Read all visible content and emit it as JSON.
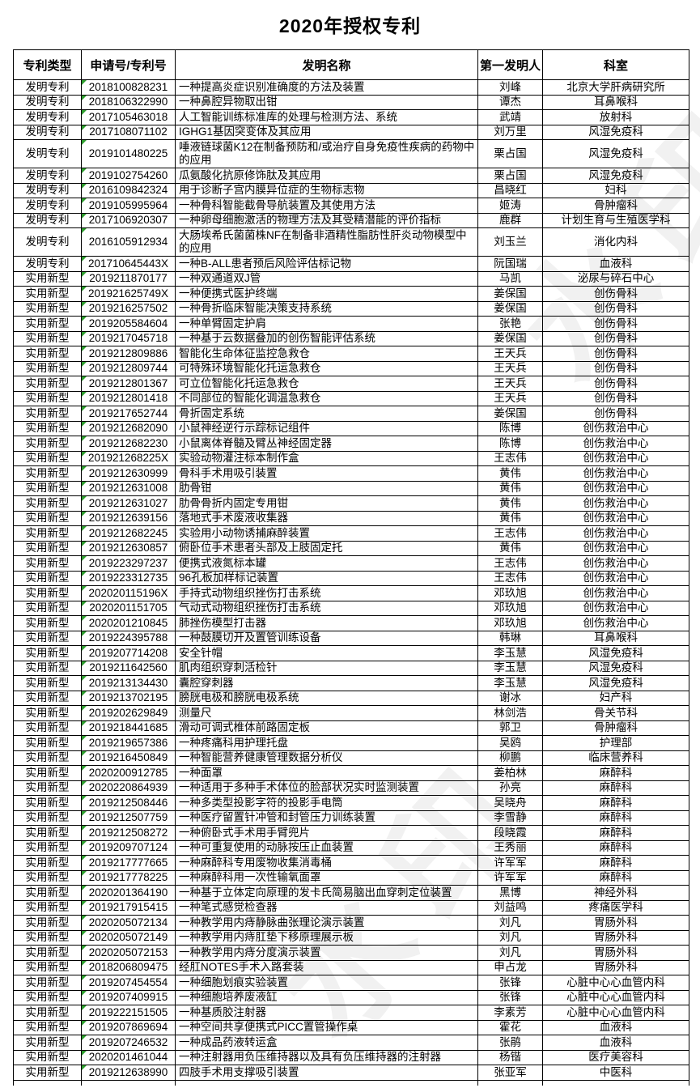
{
  "title": "2020年授权专利",
  "watermark": {
    "text": "水印"
  },
  "table": {
    "columns": [
      "专利类型",
      "申请号/专利号",
      "发明名称",
      "第一发明人",
      "科室"
    ],
    "rows": [
      {
        "type": "发明专利",
        "no": "2018100828231",
        "name": "一种提高炎症识别准确度的方法及装置",
        "inventor": "刘峰",
        "dept": "北京大学肝病研究所"
      },
      {
        "type": "发明专利",
        "no": "2018106322990",
        "name": "一种鼻腔异物取出钳",
        "inventor": "谭杰",
        "dept": "耳鼻喉科"
      },
      {
        "type": "发明专利",
        "no": "2017105463018",
        "name": "人工智能训练标准库的处理与检测方法、系统",
        "inventor": "武靖",
        "dept": "放射科"
      },
      {
        "type": "发明专利",
        "no": "2017108071102",
        "name": "IGHG1基因突变体及其应用",
        "inventor": "刘万里",
        "dept": "风湿免疫科"
      },
      {
        "type": "发明专利",
        "no": "2019101480225",
        "name": "唾液链球菌K12在制备预防和/或治疗自身免疫性疾病的药物中的应用",
        "inventor": "栗占国",
        "dept": "风湿免疫科"
      },
      {
        "type": "发明专利",
        "no": "2019102754260",
        "name": "瓜氨酸化抗原修饰肽及其应用",
        "inventor": "栗占国",
        "dept": "风湿免疫科"
      },
      {
        "type": "发明专利",
        "no": "2016109842324",
        "name": "用于诊断子宫内膜异位症的生物标志物",
        "inventor": "昌晓红",
        "dept": "妇科"
      },
      {
        "type": "发明专利",
        "no": "2019105995964",
        "name": "一种骨科智能截骨导航装置及其使用方法",
        "inventor": "姬涛",
        "dept": "骨肿瘤科"
      },
      {
        "type": "发明专利",
        "no": "2017106920307",
        "name": "一种卵母细胞激活的物理方法及其受精潜能的评价指标",
        "inventor": "鹿群",
        "dept": "计划生育与生殖医学科"
      },
      {
        "type": "发明专利",
        "no": "2016105912934",
        "name": "大肠埃希氏菌菌株NF在制备非酒精性脂肪性肝炎动物模型中的应用",
        "inventor": "刘玉兰",
        "dept": "消化内科"
      },
      {
        "type": "发明专利",
        "no": "201710645443X",
        "name": "一种B-ALL患者预后风险评估标记物",
        "inventor": "阮国瑞",
        "dept": "血液科"
      },
      {
        "type": "实用新型",
        "no": "2019211870177",
        "name": "一种双通道双J管",
        "inventor": "马凯",
        "dept": "泌尿与碎石中心"
      },
      {
        "type": "实用新型",
        "no": "201921625749X",
        "name": "一种便携式医护终端",
        "inventor": "姜保国",
        "dept": "创伤骨科"
      },
      {
        "type": "实用新型",
        "no": "2019216257502",
        "name": "一种骨折临床智能决策支持系统",
        "inventor": "姜保国",
        "dept": "创伤骨科"
      },
      {
        "type": "实用新型",
        "no": "2019205584604",
        "name": "一种单臂固定护肩",
        "inventor": "张艳",
        "dept": "创伤骨科"
      },
      {
        "type": "实用新型",
        "no": "2019217045718",
        "name": "一种基于云数据叠加的创伤智能评估系统",
        "inventor": "姜保国",
        "dept": "创伤骨科"
      },
      {
        "type": "实用新型",
        "no": "2019212809886",
        "name": "智能化生命体征监控急救仓",
        "inventor": "王天兵",
        "dept": "创伤骨科"
      },
      {
        "type": "实用新型",
        "no": "2019212809744",
        "name": "可特殊环境智能化托运急救仓",
        "inventor": "王天兵",
        "dept": "创伤骨科"
      },
      {
        "type": "实用新型",
        "no": "2019212801367",
        "name": "可立位智能化托运急救仓",
        "inventor": "王天兵",
        "dept": "创伤骨科"
      },
      {
        "type": "实用新型",
        "no": "2019212801418",
        "name": "不同部位的智能化调温急救仓",
        "inventor": "王天兵",
        "dept": "创伤骨科"
      },
      {
        "type": "实用新型",
        "no": "2019217652744",
        "name": "骨折固定系统",
        "inventor": "姜保国",
        "dept": "创伤骨科"
      },
      {
        "type": "实用新型",
        "no": "2019212682090",
        "name": "小鼠神经逆行示踪标记组件",
        "inventor": "陈博",
        "dept": "创伤救治中心"
      },
      {
        "type": "实用新型",
        "no": "2019212682230",
        "name": "小鼠离体脊髓及臂丛神经固定器",
        "inventor": "陈博",
        "dept": "创伤救治中心"
      },
      {
        "type": "实用新型",
        "no": "201921268225X",
        "name": "实验动物灌注标本制作盒",
        "inventor": "王志伟",
        "dept": "创伤救治中心"
      },
      {
        "type": "实用新型",
        "no": "2019212630999",
        "name": "骨科手术用吸引装置",
        "inventor": "黄伟",
        "dept": "创伤救治中心"
      },
      {
        "type": "实用新型",
        "no": "2019212631008",
        "name": "肋骨钳",
        "inventor": "黄伟",
        "dept": "创伤救治中心"
      },
      {
        "type": "实用新型",
        "no": "2019212631027",
        "name": "肋骨骨折内固定专用钳",
        "inventor": "黄伟",
        "dept": "创伤救治中心"
      },
      {
        "type": "实用新型",
        "no": "2019212639156",
        "name": "落地式手术废液收集器",
        "inventor": "黄伟",
        "dept": "创伤救治中心"
      },
      {
        "type": "实用新型",
        "no": "2019212682245",
        "name": "实验用小动物诱捕麻醉装置",
        "inventor": "王志伟",
        "dept": "创伤救治中心"
      },
      {
        "type": "实用新型",
        "no": "2019212630857",
        "name": "俯卧位手术患者头部及上肢固定托",
        "inventor": "黄伟",
        "dept": "创伤救治中心"
      },
      {
        "type": "实用新型",
        "no": "2019223297237",
        "name": "便携式液氮标本罐",
        "inventor": "王志伟",
        "dept": "创伤救治中心"
      },
      {
        "type": "实用新型",
        "no": "2019223312735",
        "name": "96孔板加样标记装置",
        "inventor": "王志伟",
        "dept": "创伤救治中心"
      },
      {
        "type": "实用新型",
        "no": "202020115196X",
        "name": "手持式动物组织挫伤打击系统",
        "inventor": "邓玖旭",
        "dept": "创伤救治中心"
      },
      {
        "type": "实用新型",
        "no": "2020201151705",
        "name": "气动式动物组织挫伤打击系统",
        "inventor": "邓玖旭",
        "dept": "创伤救治中心"
      },
      {
        "type": "实用新型",
        "no": "2020201210845",
        "name": "肺挫伤模型打击器",
        "inventor": "邓玖旭",
        "dept": "创伤救治中心"
      },
      {
        "type": "实用新型",
        "no": "2019224395788",
        "name": "一种鼓膜切开及置管训练设备",
        "inventor": "韩琳",
        "dept": "耳鼻喉科"
      },
      {
        "type": "实用新型",
        "no": "2019207714208",
        "name": "安全针帽",
        "inventor": "李玉慧",
        "dept": "风湿免疫科"
      },
      {
        "type": "实用新型",
        "no": "2019211642560",
        "name": "肌肉组织穿刺活检针",
        "inventor": "李玉慧",
        "dept": "风湿免疫科"
      },
      {
        "type": "实用新型",
        "no": "2019213134430",
        "name": "囊腔穿刺器",
        "inventor": "李玉慧",
        "dept": "风湿免疫科"
      },
      {
        "type": "实用新型",
        "no": "2019213702195",
        "name": "膀胱电极和膀胱电极系统",
        "inventor": "谢冰",
        "dept": "妇产科"
      },
      {
        "type": "实用新型",
        "no": "2019202629849",
        "name": "测量尺",
        "inventor": "林剑浩",
        "dept": "骨关节科"
      },
      {
        "type": "实用新型",
        "no": "2019218441685",
        "name": "滑动可调式椎体前路固定板",
        "inventor": "郭卫",
        "dept": "骨肿瘤科"
      },
      {
        "type": "实用新型",
        "no": "2019219657386",
        "name": "一种疼痛科用护理托盘",
        "inventor": "吴鸥",
        "dept": "护理部"
      },
      {
        "type": "实用新型",
        "no": "2019216450849",
        "name": "一种智能营养健康管理数据分析仪",
        "inventor": "柳鹏",
        "dept": "临床营养科"
      },
      {
        "type": "实用新型",
        "no": "2020200912785",
        "name": "一种面罩",
        "inventor": "姜柏林",
        "dept": "麻醉科"
      },
      {
        "type": "实用新型",
        "no": "2020220864939",
        "name": "一种适用于多种手术体位的脸部状况实时监测装置",
        "inventor": "孙亮",
        "dept": "麻醉科"
      },
      {
        "type": "实用新型",
        "no": "2019212508446",
        "name": "一种多类型投影字符的投影手电筒",
        "inventor": "吴晓舟",
        "dept": "麻醉科"
      },
      {
        "type": "实用新型",
        "no": "2019212507759",
        "name": "一种医疗留置针冲管和封管压力训练装置",
        "inventor": "李雪静",
        "dept": "麻醉科"
      },
      {
        "type": "实用新型",
        "no": "2019212508272",
        "name": "一种俯卧式手术用手臂兜片",
        "inventor": "段晓霞",
        "dept": "麻醉科"
      },
      {
        "type": "实用新型",
        "no": "2019209707124",
        "name": "一种可重复使用的动脉按压止血装置",
        "inventor": "王秀丽",
        "dept": "麻醉科"
      },
      {
        "type": "实用新型",
        "no": "2019217777665",
        "name": "一种麻醉科专用废物收集消毒桶",
        "inventor": "许军军",
        "dept": "麻醉科"
      },
      {
        "type": "实用新型",
        "no": "2019217778225",
        "name": "一种麻醉科用一次性输氧面罩",
        "inventor": "许军军",
        "dept": "麻醉科"
      },
      {
        "type": "实用新型",
        "no": "2020201364190",
        "name": "一种基于立体定向原理的发卡氏简易脑出血穿刺定位装置",
        "inventor": "黑博",
        "dept": "神经外科"
      },
      {
        "type": "实用新型",
        "no": "2019217915415",
        "name": "一种笔式感觉检查器",
        "inventor": "刘益鸣",
        "dept": "疼痛医学科"
      },
      {
        "type": "实用新型",
        "no": "2020205072134",
        "name": "一种教学用内痔静脉曲张理论演示装置",
        "inventor": "刘凡",
        "dept": "胃肠外科"
      },
      {
        "type": "实用新型",
        "no": "2020205072149",
        "name": "一种教学用内痔肛垫下移原理展示板",
        "inventor": "刘凡",
        "dept": "胃肠外科"
      },
      {
        "type": "实用新型",
        "no": "2020205072153",
        "name": "一种教学用内痔分度演示装置",
        "inventor": "刘凡",
        "dept": "胃肠外科"
      },
      {
        "type": "实用新型",
        "no": "2018206809475",
        "name": "经肛NOTES手术入路套装",
        "inventor": "申占龙",
        "dept": "胃肠外科"
      },
      {
        "type": "实用新型",
        "no": "2019207454554",
        "name": "一种细胞划痕实验装置",
        "inventor": "张锋",
        "dept": "心脏中心心血管内科"
      },
      {
        "type": "实用新型",
        "no": "2019207409915",
        "name": "一种细胞培养废液缸",
        "inventor": "张锋",
        "dept": "心脏中心心血管内科"
      },
      {
        "type": "实用新型",
        "no": "2019222151505",
        "name": "一种基质胶注射器",
        "inventor": "李素芳",
        "dept": "心脏中心心血管内科"
      },
      {
        "type": "实用新型",
        "no": "2019207869694",
        "name": "一种空间共享便携式PICC置管操作桌",
        "inventor": "霍花",
        "dept": "血液科"
      },
      {
        "type": "实用新型",
        "no": "2019207246532",
        "name": "一种成品药液转运盒",
        "inventor": "张鹃",
        "dept": "血液科"
      },
      {
        "type": "实用新型",
        "no": "2020201461044",
        "name": "一种注射器用负压维持器以及具有负压维持器的注射器",
        "inventor": "杨锴",
        "dept": "医疗美容科"
      },
      {
        "type": "实用新型",
        "no": "2019212638990",
        "name": "四肢手术用支撑吸引装置",
        "inventor": "张亚军",
        "dept": "中医科"
      }
    ]
  }
}
